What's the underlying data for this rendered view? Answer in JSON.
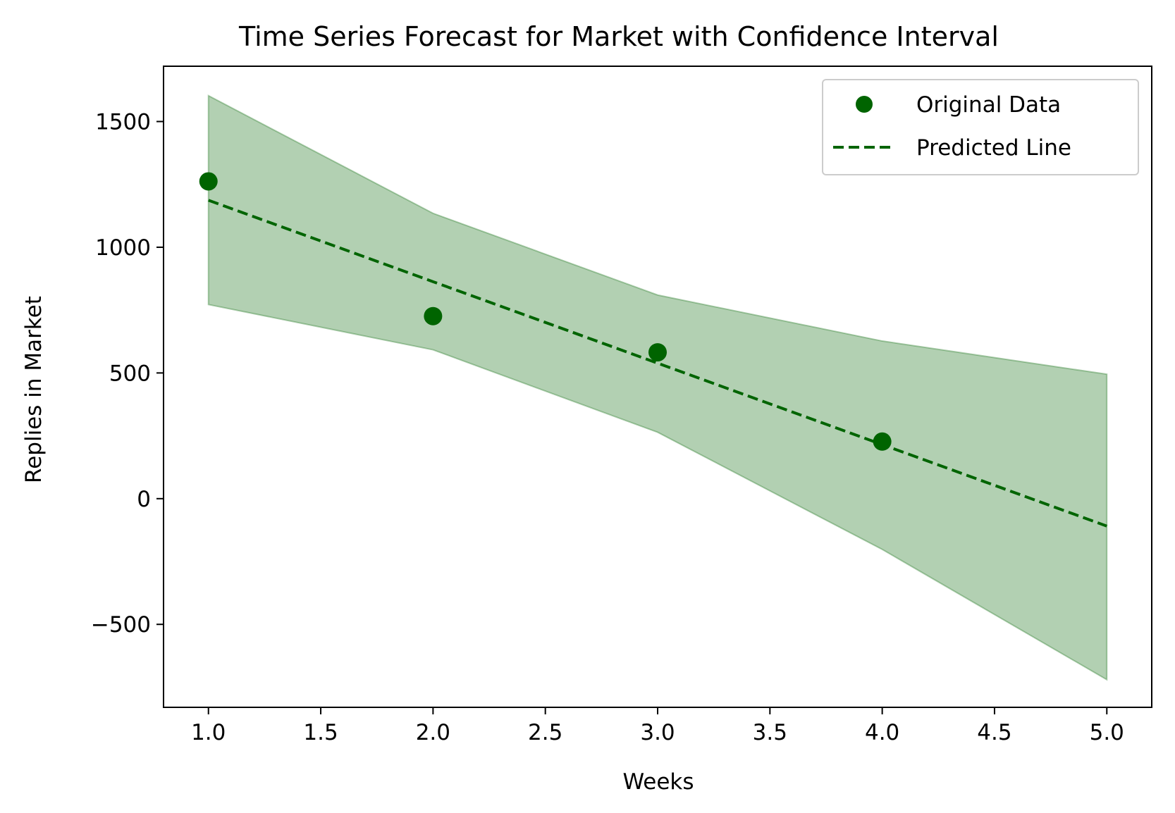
{
  "chart_data": {
    "type": "line",
    "title": "Time Series Forecast for Market with Confidence Interval",
    "xlabel": "Weeks",
    "ylabel": "Replies in Market",
    "xlim": [
      0.8,
      5.2
    ],
    "ylim": [
      -830,
      1720
    ],
    "x_ticks": [
      1.0,
      1.5,
      2.0,
      2.5,
      3.0,
      3.5,
      4.0,
      4.5,
      5.0
    ],
    "x_tick_labels": [
      "1.0",
      "1.5",
      "2.0",
      "2.5",
      "3.0",
      "3.5",
      "4.0",
      "4.5",
      "5.0"
    ],
    "y_ticks": [
      -500,
      0,
      500,
      1000,
      1500
    ],
    "y_tick_labels": [
      "−500",
      "0",
      "500",
      "1000",
      "1500"
    ],
    "grid": false,
    "legend_position": "top-right",
    "series": [
      {
        "name": "Original Data",
        "style": "scatter",
        "color": "#006400",
        "x": [
          1,
          2,
          3,
          4
        ],
        "y": [
          1262,
          726,
          582,
          227
        ]
      },
      {
        "name": "Predicted Line",
        "style": "dashed-line",
        "color": "#006400",
        "x": [
          1,
          2,
          3,
          4,
          5
        ],
        "y": [
          1187,
          863,
          539,
          215,
          -109
        ]
      }
    ],
    "confidence_interval": {
      "color": "#006400",
      "opacity": 0.3,
      "x": [
        1,
        2,
        3,
        4,
        5
      ],
      "upper": [
        1603,
        1135,
        810,
        627,
        495
      ],
      "lower": [
        772,
        592,
        264,
        -202,
        -720
      ]
    }
  }
}
